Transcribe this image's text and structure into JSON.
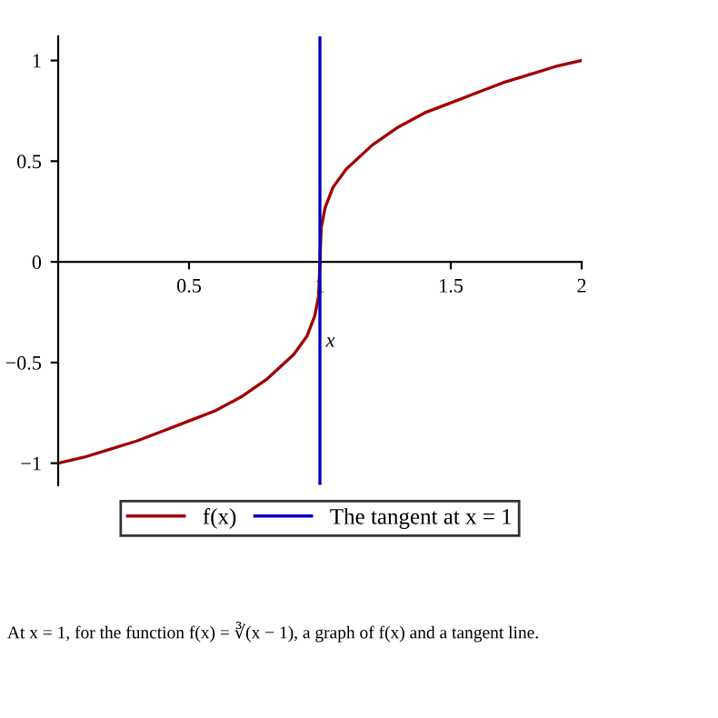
{
  "chart_data": {
    "type": "line",
    "xlabel": "x",
    "xlim": [
      0,
      2
    ],
    "ylim": [
      -1.11,
      1.12
    ],
    "xticks": [
      0.5,
      1,
      1.5,
      2
    ],
    "yticks": [
      {
        "value": -1,
        "label": "−1"
      },
      {
        "value": -0.5,
        "label": "−0.5"
      },
      0,
      0.5,
      1
    ],
    "series": [
      {
        "name": "f(x)",
        "color": "#a00000",
        "x": [
          0,
          0.1,
          0.2,
          0.3,
          0.4,
          0.5,
          0.6,
          0.7,
          0.8,
          0.9,
          0.95,
          0.98,
          0.995,
          1,
          1.005,
          1.02,
          1.05,
          1.1,
          1.2,
          1.3,
          1.4,
          1.5,
          1.6,
          1.7,
          1.8,
          1.9,
          2
        ],
        "values": [
          -1,
          -0.97,
          -0.93,
          -0.89,
          -0.84,
          -0.79,
          -0.74,
          -0.67,
          -0.58,
          -0.46,
          -0.37,
          -0.27,
          -0.17,
          0,
          0.17,
          0.27,
          0.37,
          0.46,
          0.58,
          0.67,
          0.74,
          0.79,
          0.84,
          0.89,
          0.93,
          0.97,
          1
        ]
      },
      {
        "name": "The tangent at x = 1",
        "color": "#0000c0",
        "x": [
          1,
          1
        ],
        "values": [
          -1.1,
          1.12
        ]
      }
    ],
    "legend": "bottom",
    "annotations": [
      "At x = 1, for the function f(x) = ∛(x − 1), a graph of f(x) and a tangent line."
    ]
  }
}
